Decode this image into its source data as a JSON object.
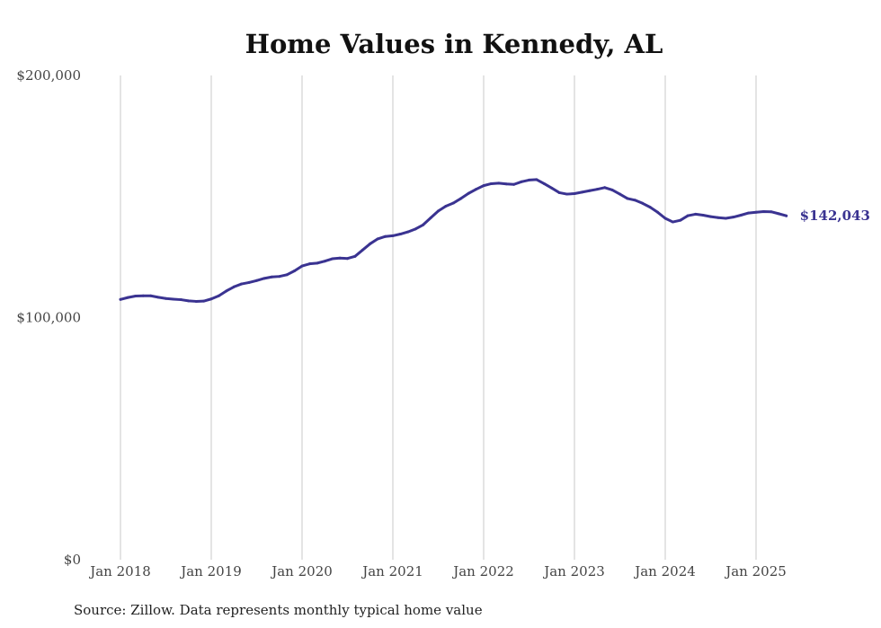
{
  "chart_data": {
    "type": "line",
    "title": "Home Values in Kennedy, AL",
    "source": "Source: Zillow. Data represents monthly typical home value",
    "xlabel": "",
    "ylabel": "",
    "ylim": [
      0,
      200000
    ],
    "yticks": [
      {
        "value": 0,
        "label": "$0"
      },
      {
        "value": 100000,
        "label": "$100,000"
      },
      {
        "value": 200000,
        "label": "$200,000"
      }
    ],
    "xticks": [
      {
        "value": "2018-01",
        "label": "Jan 2018"
      },
      {
        "value": "2019-01",
        "label": "Jan 2019"
      },
      {
        "value": "2020-01",
        "label": "Jan 2020"
      },
      {
        "value": "2021-01",
        "label": "Jan 2021"
      },
      {
        "value": "2022-01",
        "label": "Jan 2022"
      },
      {
        "value": "2023-01",
        "label": "Jan 2023"
      },
      {
        "value": "2024-01",
        "label": "Jan 2024"
      },
      {
        "value": "2025-01",
        "label": "Jan 2025"
      }
    ],
    "grid": "vertical",
    "line_color": "#3a3391",
    "end_label": "$142,043",
    "series": [
      {
        "points": [
          [
            "2018-01",
            107500
          ],
          [
            "2018-02",
            108300
          ],
          [
            "2018-03",
            108900
          ],
          [
            "2018-04",
            109000
          ],
          [
            "2018-05",
            109000
          ],
          [
            "2018-06",
            108400
          ],
          [
            "2018-07",
            107900
          ],
          [
            "2018-08",
            107600
          ],
          [
            "2018-09",
            107400
          ],
          [
            "2018-10",
            106900
          ],
          [
            "2018-11",
            106700
          ],
          [
            "2018-12",
            106800
          ],
          [
            "2019-01",
            107700
          ],
          [
            "2019-02",
            109000
          ],
          [
            "2019-03",
            111000
          ],
          [
            "2019-04",
            112700
          ],
          [
            "2019-05",
            113900
          ],
          [
            "2019-06",
            114500
          ],
          [
            "2019-07",
            115300
          ],
          [
            "2019-08",
            116200
          ],
          [
            "2019-09",
            116800
          ],
          [
            "2019-10",
            117000
          ],
          [
            "2019-11",
            117700
          ],
          [
            "2019-12",
            119300
          ],
          [
            "2020-01",
            121300
          ],
          [
            "2020-02",
            122200
          ],
          [
            "2020-03",
            122500
          ],
          [
            "2020-04",
            123300
          ],
          [
            "2020-05",
            124300
          ],
          [
            "2020-06",
            124600
          ],
          [
            "2020-07",
            124400
          ],
          [
            "2020-08",
            125300
          ],
          [
            "2020-09",
            127900
          ],
          [
            "2020-10",
            130500
          ],
          [
            "2020-11",
            132500
          ],
          [
            "2020-12",
            133500
          ],
          [
            "2021-01",
            133800
          ],
          [
            "2021-02",
            134500
          ],
          [
            "2021-03",
            135400
          ],
          [
            "2021-04",
            136600
          ],
          [
            "2021-05",
            138300
          ],
          [
            "2021-06",
            141200
          ],
          [
            "2021-07",
            144000
          ],
          [
            "2021-08",
            146000
          ],
          [
            "2021-09",
            147300
          ],
          [
            "2021-10",
            149200
          ],
          [
            "2021-11",
            151300
          ],
          [
            "2021-12",
            153000
          ],
          [
            "2022-01",
            154500
          ],
          [
            "2022-02",
            155300
          ],
          [
            "2022-03",
            155500
          ],
          [
            "2022-04",
            155200
          ],
          [
            "2022-05",
            155000
          ],
          [
            "2022-06",
            156100
          ],
          [
            "2022-07",
            156800
          ],
          [
            "2022-08",
            157000
          ],
          [
            "2022-09",
            155300
          ],
          [
            "2022-10",
            153500
          ],
          [
            "2022-11",
            151600
          ],
          [
            "2022-12",
            151000
          ],
          [
            "2023-01",
            151200
          ],
          [
            "2023-02",
            151800
          ],
          [
            "2023-03",
            152400
          ],
          [
            "2023-04",
            153000
          ],
          [
            "2023-05",
            153700
          ],
          [
            "2023-06",
            152700
          ],
          [
            "2023-07",
            151000
          ],
          [
            "2023-08",
            149200
          ],
          [
            "2023-09",
            148500
          ],
          [
            "2023-10",
            147200
          ],
          [
            "2023-11",
            145600
          ],
          [
            "2023-12",
            143500
          ],
          [
            "2024-01",
            141000
          ],
          [
            "2024-02",
            139500
          ],
          [
            "2024-03",
            140200
          ],
          [
            "2024-04",
            142100
          ],
          [
            "2024-05",
            142700
          ],
          [
            "2024-06",
            142300
          ],
          [
            "2024-07",
            141700
          ],
          [
            "2024-08",
            141300
          ],
          [
            "2024-09",
            141000
          ],
          [
            "2024-10",
            141500
          ],
          [
            "2024-11",
            142300
          ],
          [
            "2024-12",
            143200
          ],
          [
            "2025-01",
            143500
          ],
          [
            "2025-02",
            143800
          ],
          [
            "2025-03",
            143700
          ],
          [
            "2025-04",
            142900
          ],
          [
            "2025-05",
            142043
          ]
        ]
      }
    ]
  }
}
